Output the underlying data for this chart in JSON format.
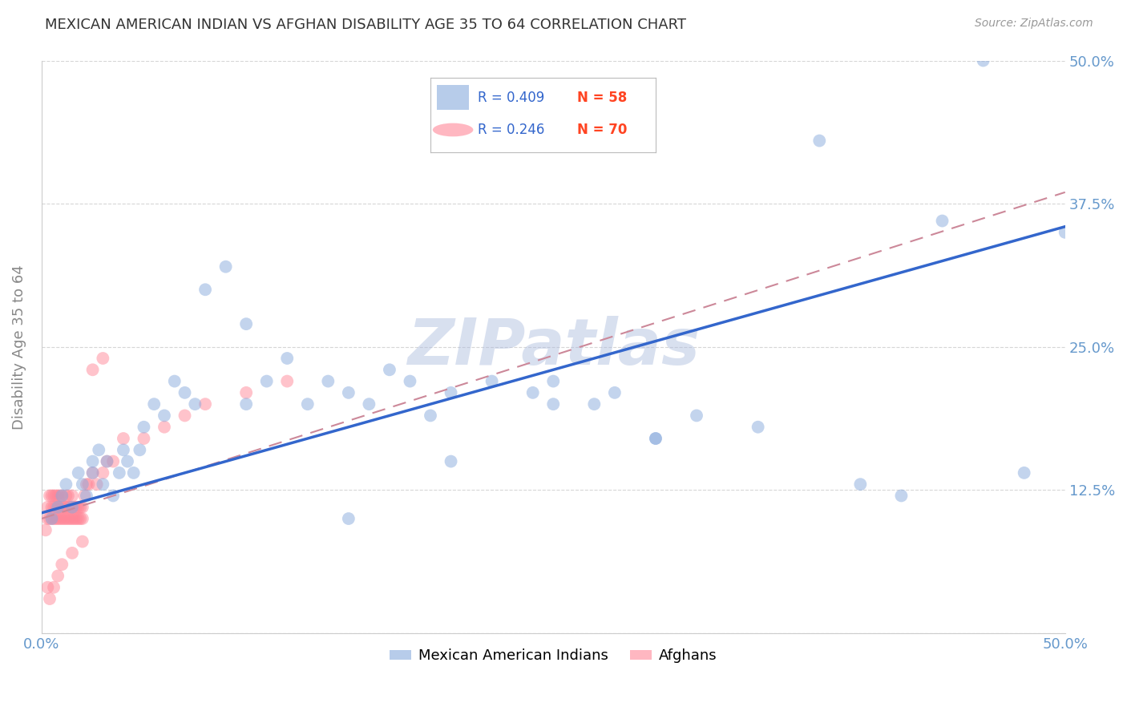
{
  "title": "MEXICAN AMERICAN INDIAN VS AFGHAN DISABILITY AGE 35 TO 64 CORRELATION CHART",
  "source": "Source: ZipAtlas.com",
  "ylabel": "Disability Age 35 to 64",
  "xlim": [
    0.0,
    0.5
  ],
  "ylim": [
    0.0,
    0.5
  ],
  "blue_color": "#88AADD",
  "pink_color": "#FF8899",
  "line_blue": "#3366CC",
  "line_pink_dash": "#CC8899",
  "watermark": "ZIPatlas",
  "watermark_color": "#AABBDD",
  "blue_scatter_x": [
    0.005,
    0.008,
    0.01,
    0.012,
    0.015,
    0.018,
    0.02,
    0.022,
    0.025,
    0.025,
    0.028,
    0.03,
    0.032,
    0.035,
    0.038,
    0.04,
    0.042,
    0.045,
    0.048,
    0.05,
    0.055,
    0.06,
    0.065,
    0.07,
    0.075,
    0.08,
    0.09,
    0.1,
    0.11,
    0.12,
    0.13,
    0.14,
    0.15,
    0.16,
    0.17,
    0.18,
    0.19,
    0.2,
    0.22,
    0.24,
    0.25,
    0.27,
    0.28,
    0.3,
    0.32,
    0.35,
    0.38,
    0.4,
    0.42,
    0.44,
    0.46,
    0.48,
    0.5,
    0.3,
    0.2,
    0.25,
    0.1,
    0.15
  ],
  "blue_scatter_y": [
    0.1,
    0.11,
    0.12,
    0.13,
    0.11,
    0.14,
    0.13,
    0.12,
    0.15,
    0.14,
    0.16,
    0.13,
    0.15,
    0.12,
    0.14,
    0.16,
    0.15,
    0.14,
    0.16,
    0.18,
    0.2,
    0.19,
    0.22,
    0.21,
    0.2,
    0.3,
    0.32,
    0.2,
    0.22,
    0.24,
    0.2,
    0.22,
    0.21,
    0.2,
    0.23,
    0.22,
    0.19,
    0.21,
    0.22,
    0.21,
    0.22,
    0.2,
    0.21,
    0.17,
    0.19,
    0.18,
    0.43,
    0.13,
    0.12,
    0.36,
    0.5,
    0.14,
    0.35,
    0.17,
    0.15,
    0.2,
    0.27,
    0.1
  ],
  "pink_scatter_x": [
    0.002,
    0.003,
    0.003,
    0.004,
    0.004,
    0.005,
    0.005,
    0.005,
    0.006,
    0.006,
    0.006,
    0.007,
    0.007,
    0.007,
    0.008,
    0.008,
    0.008,
    0.009,
    0.009,
    0.009,
    0.01,
    0.01,
    0.01,
    0.011,
    0.011,
    0.012,
    0.012,
    0.012,
    0.013,
    0.013,
    0.013,
    0.014,
    0.014,
    0.015,
    0.015,
    0.015,
    0.016,
    0.016,
    0.017,
    0.017,
    0.018,
    0.018,
    0.019,
    0.019,
    0.02,
    0.02,
    0.021,
    0.022,
    0.023,
    0.025,
    0.027,
    0.03,
    0.032,
    0.035,
    0.04,
    0.05,
    0.06,
    0.07,
    0.08,
    0.1,
    0.12,
    0.025,
    0.03,
    0.02,
    0.015,
    0.01,
    0.008,
    0.006,
    0.004,
    0.003
  ],
  "pink_scatter_y": [
    0.09,
    0.1,
    0.11,
    0.1,
    0.12,
    0.1,
    0.11,
    0.12,
    0.1,
    0.11,
    0.12,
    0.1,
    0.11,
    0.12,
    0.1,
    0.11,
    0.12,
    0.1,
    0.11,
    0.12,
    0.1,
    0.11,
    0.12,
    0.1,
    0.11,
    0.1,
    0.11,
    0.12,
    0.1,
    0.11,
    0.12,
    0.1,
    0.11,
    0.1,
    0.11,
    0.12,
    0.1,
    0.11,
    0.1,
    0.11,
    0.1,
    0.11,
    0.1,
    0.11,
    0.1,
    0.11,
    0.12,
    0.13,
    0.13,
    0.14,
    0.13,
    0.14,
    0.15,
    0.15,
    0.17,
    0.17,
    0.18,
    0.19,
    0.2,
    0.21,
    0.22,
    0.23,
    0.24,
    0.08,
    0.07,
    0.06,
    0.05,
    0.04,
    0.03,
    0.04
  ],
  "blue_trend_x": [
    0.0,
    0.5
  ],
  "blue_trend_y": [
    0.105,
    0.355
  ],
  "pink_trend_x": [
    0.0,
    0.5
  ],
  "pink_trend_y": [
    0.1,
    0.385
  ],
  "grid_color": "#CCCCCC",
  "bg_color": "#FFFFFF",
  "title_color": "#333333",
  "axis_label_color": "#888888",
  "tick_color": "#6699CC",
  "legend_blue_r": "R = 0.409",
  "legend_blue_n": "N = 58",
  "legend_pink_r": "R = 0.246",
  "legend_pink_n": "N = 70",
  "legend_r_color": "#3366CC",
  "legend_n_color": "#FF4422"
}
